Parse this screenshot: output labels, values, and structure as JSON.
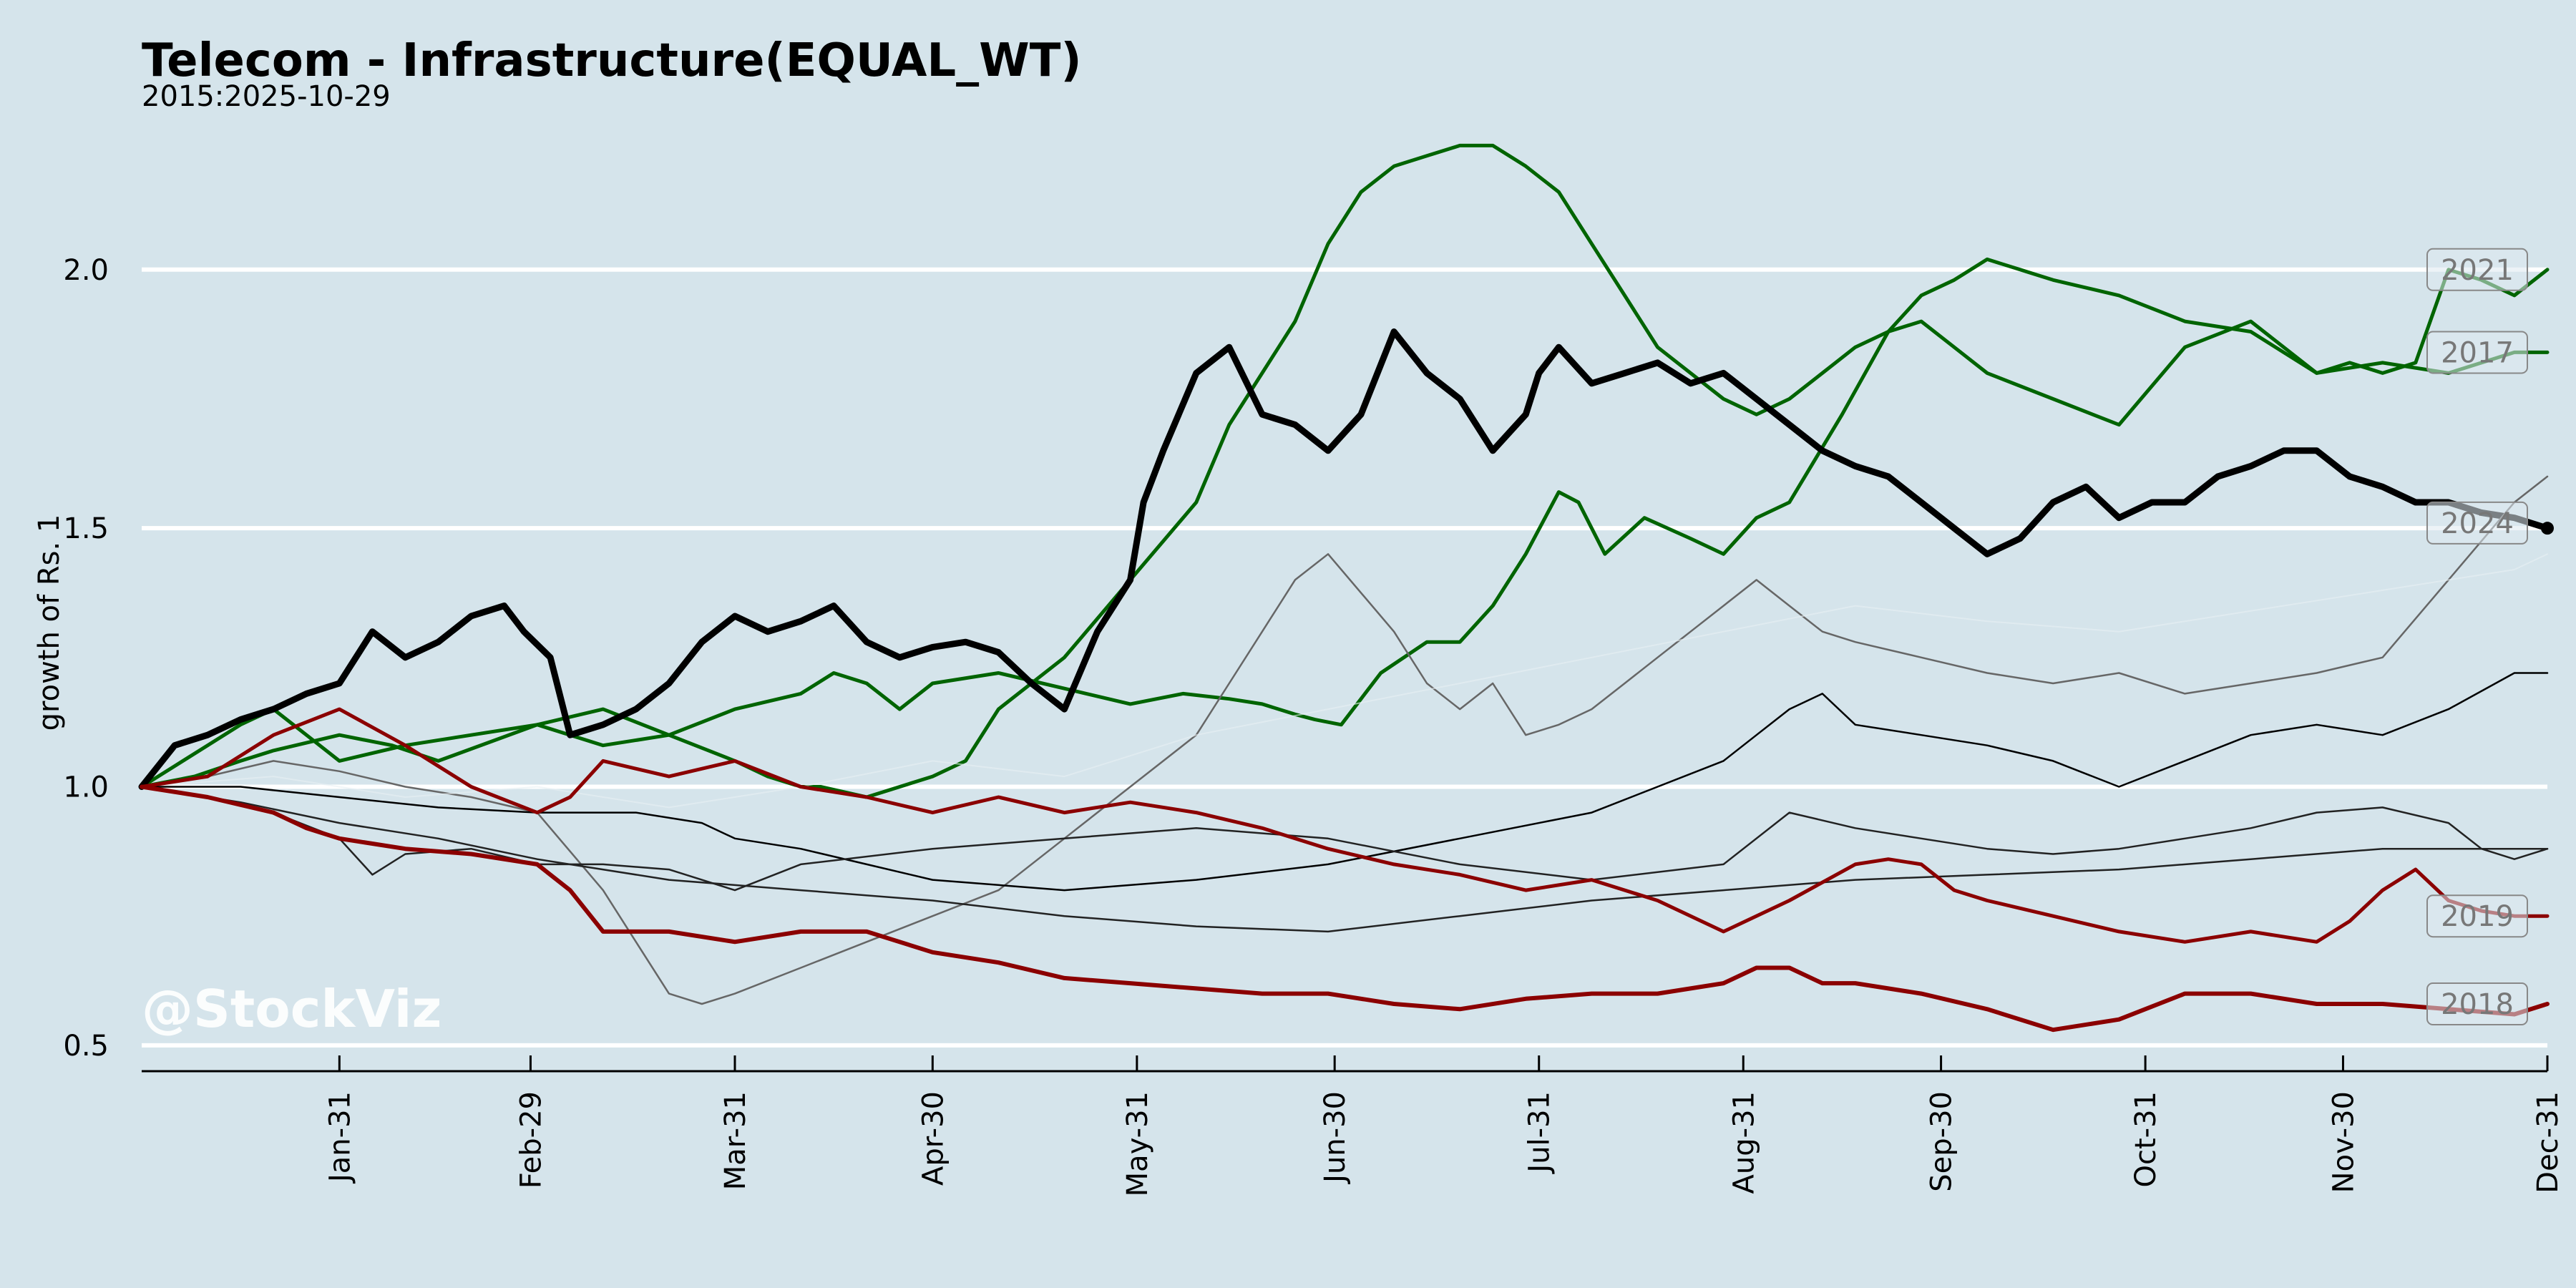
{
  "chart_data": {
    "type": "line",
    "title": "Telecom - Infrastructure(EQUAL_WT)",
    "subtitle": "2015:2025-10-29",
    "ylabel": "growth of Rs. 1",
    "watermark": "@StockViz",
    "ylim": [
      0.45,
      2.3
    ],
    "yticks": [
      0.5,
      1.0,
      1.5,
      2.0
    ],
    "ytick_labels": [
      "0.5",
      "1.0",
      "1.5",
      "2.0"
    ],
    "xlim": [
      0,
      365
    ],
    "xticks": [
      {
        "label": "Jan-31",
        "day": 30
      },
      {
        "label": "Feb-29",
        "day": 59
      },
      {
        "label": "Mar-31",
        "day": 90
      },
      {
        "label": "Apr-30",
        "day": 120
      },
      {
        "label": "May-31",
        "day": 151
      },
      {
        "label": "Jun-30",
        "day": 181
      },
      {
        "label": "Jul-31",
        "day": 212
      },
      {
        "label": "Aug-31",
        "day": 243
      },
      {
        "label": "Sep-30",
        "day": 273
      },
      {
        "label": "Oct-31",
        "day": 304
      },
      {
        "label": "Nov-30",
        "day": 334
      },
      {
        "label": "Dec-31",
        "day": 365
      }
    ],
    "grid": "horizontal",
    "colors": {
      "background": "#d5e4eb",
      "grid": "#ffffff",
      "current_year": "#000000",
      "up": "#006400",
      "down": "#8b0000",
      "neutral_dark": "#222222",
      "neutral_grey": "#666666",
      "label_box": "#888888"
    },
    "series": [
      {
        "name": "2021",
        "color": "#006400",
        "width": 5,
        "opacity": 1,
        "x": [
          0,
          8,
          15,
          20,
          30,
          38,
          45,
          60,
          70,
          80,
          90,
          100,
          105,
          110,
          115,
          120,
          130,
          140,
          150,
          158,
          165,
          170,
          175,
          178,
          182,
          188,
          195,
          200,
          205,
          210,
          215,
          218,
          222,
          228,
          235,
          240,
          245,
          250,
          258,
          265,
          270,
          275,
          280,
          290,
          300,
          310,
          320,
          330,
          335,
          340,
          345,
          350,
          355,
          360,
          365
        ],
        "y": [
          1.0,
          1.02,
          1.05,
          1.07,
          1.1,
          1.08,
          1.05,
          1.12,
          1.08,
          1.1,
          1.15,
          1.18,
          1.22,
          1.2,
          1.15,
          1.2,
          1.22,
          1.19,
          1.16,
          1.18,
          1.17,
          1.16,
          1.14,
          1.13,
          1.12,
          1.22,
          1.28,
          1.28,
          1.35,
          1.45,
          1.57,
          1.55,
          1.45,
          1.52,
          1.48,
          1.45,
          1.52,
          1.55,
          1.72,
          1.88,
          1.9,
          1.85,
          1.8,
          1.75,
          1.7,
          1.85,
          1.9,
          1.8,
          1.82,
          1.8,
          1.82,
          2.0,
          1.98,
          1.95,
          2.0
        ]
      },
      {
        "name": "2017",
        "color": "#006400",
        "width": 5,
        "opacity": 1,
        "x": [
          0,
          5,
          10,
          15,
          20,
          25,
          30,
          40,
          50,
          60,
          70,
          80,
          90,
          95,
          100,
          103,
          110,
          120,
          125,
          130,
          140,
          150,
          160,
          165,
          170,
          175,
          180,
          185,
          190,
          195,
          200,
          205,
          210,
          215,
          220,
          225,
          230,
          235,
          240,
          245,
          250,
          255,
          260,
          265,
          270,
          275,
          280,
          285,
          290,
          300,
          310,
          320,
          330,
          340,
          350,
          360,
          365
        ],
        "y": [
          1.0,
          1.04,
          1.08,
          1.12,
          1.15,
          1.1,
          1.05,
          1.08,
          1.1,
          1.12,
          1.15,
          1.1,
          1.05,
          1.02,
          1.0,
          1.0,
          0.98,
          1.02,
          1.05,
          1.15,
          1.25,
          1.4,
          1.55,
          1.7,
          1.8,
          1.9,
          2.05,
          2.15,
          2.2,
          2.22,
          2.24,
          2.24,
          2.2,
          2.15,
          2.05,
          1.95,
          1.85,
          1.8,
          1.75,
          1.72,
          1.75,
          1.8,
          1.85,
          1.88,
          1.95,
          1.98,
          2.02,
          2.0,
          1.98,
          1.95,
          1.9,
          1.88,
          1.8,
          1.82,
          1.8,
          1.84,
          1.84
        ]
      },
      {
        "name": "2024",
        "color": "#000000",
        "width": 9,
        "opacity": 1,
        "x": [
          0,
          5,
          10,
          15,
          20,
          25,
          30,
          35,
          40,
          45,
          50,
          55,
          58,
          62,
          65,
          70,
          75,
          80,
          85,
          90,
          95,
          100,
          105,
          110,
          115,
          120,
          125,
          130,
          135,
          140,
          145,
          150,
          152,
          155,
          160,
          165,
          170,
          175,
          180,
          185,
          190,
          195,
          200,
          205,
          210,
          212,
          215,
          220,
          225,
          230,
          235,
          240,
          245,
          250,
          255,
          260,
          265,
          270,
          275,
          280,
          285,
          290,
          295,
          300,
          305,
          310,
          315,
          320,
          325,
          330,
          335,
          340,
          345,
          350,
          355,
          360,
          365
        ],
        "y": [
          1.0,
          1.08,
          1.1,
          1.13,
          1.15,
          1.18,
          1.2,
          1.3,
          1.25,
          1.28,
          1.33,
          1.35,
          1.3,
          1.25,
          1.1,
          1.12,
          1.15,
          1.2,
          1.28,
          1.33,
          1.3,
          1.32,
          1.35,
          1.28,
          1.25,
          1.27,
          1.28,
          1.26,
          1.2,
          1.15,
          1.3,
          1.4,
          1.55,
          1.65,
          1.8,
          1.85,
          1.72,
          1.7,
          1.65,
          1.72,
          1.88,
          1.8,
          1.75,
          1.65,
          1.72,
          1.8,
          1.85,
          1.78,
          1.8,
          1.82,
          1.78,
          1.8,
          1.75,
          1.7,
          1.65,
          1.62,
          1.6,
          1.55,
          1.5,
          1.45,
          1.48,
          1.55,
          1.58,
          1.52,
          1.55,
          1.55,
          1.6,
          1.62,
          1.65,
          1.65,
          1.6,
          1.58,
          1.55,
          1.55,
          1.53,
          1.52,
          1.5
        ]
      },
      {
        "name": "",
        "color": "#666666",
        "width": 2.5,
        "opacity": 1,
        "x": [
          0,
          10,
          20,
          30,
          40,
          50,
          60,
          70,
          75,
          80,
          85,
          90,
          100,
          110,
          120,
          130,
          140,
          150,
          160,
          165,
          170,
          175,
          180,
          190,
          195,
          200,
          205,
          210,
          215,
          220,
          225,
          230,
          235,
          240,
          245,
          250,
          255,
          260,
          270,
          280,
          290,
          300,
          310,
          320,
          330,
          340,
          350,
          360,
          365
        ],
        "y": [
          1.0,
          1.02,
          1.05,
          1.03,
          1.0,
          0.98,
          0.95,
          0.8,
          0.7,
          0.6,
          0.58,
          0.6,
          0.65,
          0.7,
          0.75,
          0.8,
          0.9,
          1.0,
          1.1,
          1.2,
          1.3,
          1.4,
          1.45,
          1.3,
          1.2,
          1.15,
          1.2,
          1.1,
          1.12,
          1.15,
          1.2,
          1.25,
          1.3,
          1.35,
          1.4,
          1.35,
          1.3,
          1.28,
          1.25,
          1.22,
          1.2,
          1.22,
          1.18,
          1.2,
          1.22,
          1.25,
          1.4,
          1.55,
          1.6
        ]
      },
      {
        "name": "",
        "color": "#e8f0f4",
        "width": 2,
        "opacity": 0.6,
        "x": [
          0,
          20,
          40,
          60,
          80,
          100,
          120,
          140,
          160,
          180,
          200,
          220,
          240,
          260,
          280,
          300,
          320,
          340,
          360,
          365
        ],
        "y": [
          1.0,
          1.02,
          0.98,
          1.0,
          0.96,
          1.0,
          1.05,
          1.02,
          1.1,
          1.15,
          1.2,
          1.25,
          1.3,
          1.35,
          1.32,
          1.3,
          1.34,
          1.38,
          1.42,
          1.45
        ]
      },
      {
        "name": "",
        "color": "#000000",
        "width": 2.5,
        "opacity": 1,
        "x": [
          0,
          15,
          30,
          45,
          60,
          75,
          85,
          90,
          100,
          110,
          120,
          140,
          160,
          180,
          200,
          220,
          240,
          245,
          250,
          255,
          260,
          270,
          280,
          290,
          300,
          310,
          320,
          330,
          340,
          350,
          360,
          365
        ],
        "y": [
          1.0,
          1.0,
          0.98,
          0.96,
          0.95,
          0.95,
          0.93,
          0.9,
          0.88,
          0.85,
          0.82,
          0.8,
          0.82,
          0.85,
          0.9,
          0.95,
          1.05,
          1.1,
          1.15,
          1.18,
          1.12,
          1.1,
          1.08,
          1.05,
          1.0,
          1.05,
          1.1,
          1.12,
          1.1,
          1.15,
          1.22,
          1.22
        ]
      },
      {
        "name": "",
        "color": "#222222",
        "width": 2.5,
        "opacity": 1,
        "x": [
          0,
          10,
          20,
          30,
          35,
          40,
          50,
          60,
          70,
          80,
          90,
          100,
          120,
          140,
          160,
          180,
          200,
          220,
          240,
          250,
          260,
          270,
          280,
          290,
          300,
          310,
          320,
          330,
          340,
          350,
          355,
          360,
          365
        ],
        "y": [
          1.0,
          0.98,
          0.95,
          0.9,
          0.83,
          0.87,
          0.88,
          0.85,
          0.85,
          0.84,
          0.8,
          0.85,
          0.88,
          0.9,
          0.92,
          0.9,
          0.85,
          0.82,
          0.85,
          0.95,
          0.92,
          0.9,
          0.88,
          0.87,
          0.88,
          0.9,
          0.92,
          0.95,
          0.96,
          0.93,
          0.88,
          0.86,
          0.88
        ]
      },
      {
        "name": "",
        "color": "#222222",
        "width": 2.5,
        "opacity": 1,
        "x": [
          0,
          15,
          30,
          45,
          60,
          80,
          100,
          120,
          140,
          160,
          180,
          200,
          220,
          240,
          260,
          280,
          300,
          320,
          340,
          360,
          365
        ],
        "y": [
          1.0,
          0.97,
          0.93,
          0.9,
          0.86,
          0.82,
          0.8,
          0.78,
          0.75,
          0.73,
          0.72,
          0.75,
          0.78,
          0.8,
          0.82,
          0.83,
          0.84,
          0.86,
          0.88,
          0.88,
          0.88
        ]
      },
      {
        "name": "2019",
        "color": "#8b0000",
        "width": 5,
        "opacity": 1,
        "x": [
          0,
          10,
          20,
          30,
          40,
          50,
          60,
          65,
          70,
          80,
          90,
          100,
          110,
          120,
          130,
          140,
          150,
          160,
          170,
          180,
          190,
          200,
          210,
          220,
          230,
          240,
          250,
          260,
          265,
          270,
          275,
          280,
          290,
          300,
          310,
          320,
          330,
          335,
          340,
          345,
          350,
          355,
          360,
          365
        ],
        "y": [
          1.0,
          1.02,
          1.1,
          1.15,
          1.08,
          1.0,
          0.95,
          0.98,
          1.05,
          1.02,
          1.05,
          1.0,
          0.98,
          0.95,
          0.98,
          0.95,
          0.97,
          0.95,
          0.92,
          0.88,
          0.85,
          0.83,
          0.8,
          0.82,
          0.78,
          0.72,
          0.78,
          0.85,
          0.86,
          0.85,
          0.8,
          0.78,
          0.75,
          0.72,
          0.7,
          0.72,
          0.7,
          0.74,
          0.8,
          0.84,
          0.78,
          0.76,
          0.75,
          0.75
        ]
      },
      {
        "name": "2018",
        "color": "#8b0000",
        "width": 6,
        "opacity": 1,
        "x": [
          0,
          10,
          20,
          25,
          30,
          40,
          50,
          60,
          65,
          70,
          80,
          90,
          100,
          110,
          120,
          130,
          140,
          150,
          160,
          170,
          180,
          190,
          200,
          210,
          220,
          230,
          240,
          245,
          250,
          255,
          260,
          270,
          280,
          285,
          290,
          300,
          310,
          320,
          330,
          340,
          350,
          360,
          365
        ],
        "y": [
          1.0,
          0.98,
          0.95,
          0.92,
          0.9,
          0.88,
          0.87,
          0.85,
          0.8,
          0.72,
          0.72,
          0.7,
          0.72,
          0.72,
          0.68,
          0.66,
          0.63,
          0.62,
          0.61,
          0.6,
          0.6,
          0.58,
          0.57,
          0.59,
          0.6,
          0.6,
          0.62,
          0.65,
          0.65,
          0.62,
          0.62,
          0.6,
          0.57,
          0.55,
          0.53,
          0.55,
          0.6,
          0.6,
          0.58,
          0.58,
          0.57,
          0.56,
          0.58
        ]
      }
    ],
    "year_labels": [
      {
        "label": "2021",
        "y": 2.0
      },
      {
        "label": "2017",
        "y": 1.84
      },
      {
        "label": "2024",
        "y": 1.51
      },
      {
        "label": "2019",
        "y": 0.75
      },
      {
        "label": "2018",
        "y": 0.58
      }
    ]
  }
}
